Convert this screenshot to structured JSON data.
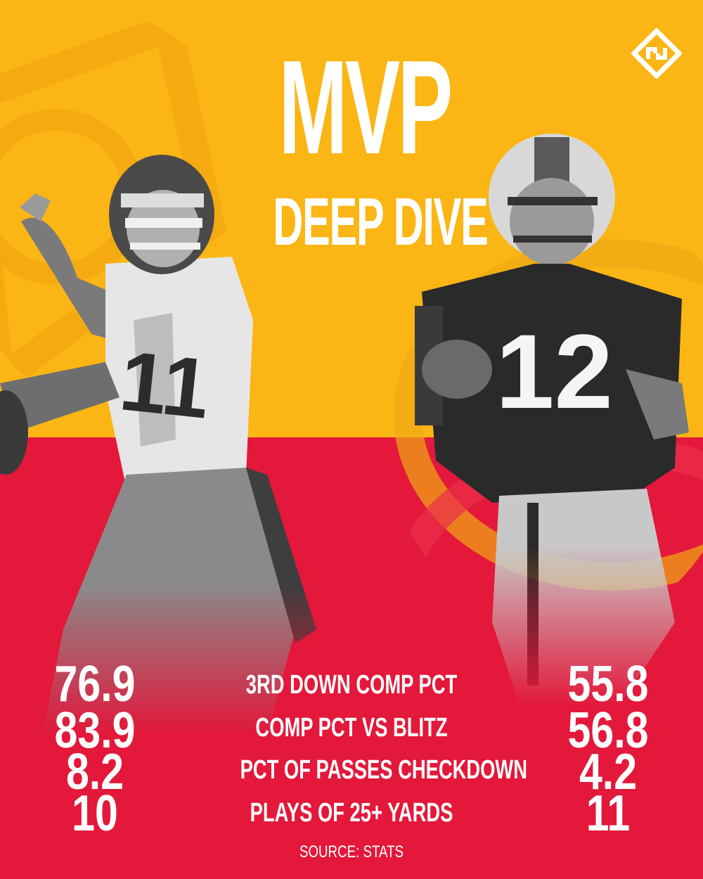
{
  "title": {
    "main": "MVP",
    "sub": "DEEP DIVE"
  },
  "colors": {
    "top_background": "#fbb514",
    "bottom_background": "#e3183a",
    "text": "#ffffff"
  },
  "players": {
    "left": {
      "jersey_number": "11",
      "helmet_icon": "chiefs-helmet"
    },
    "right": {
      "jersey_number": "12",
      "helmet_icon": "packers-helmet"
    }
  },
  "stats": [
    {
      "label": "3RD DOWN COMP PCT",
      "left": "76.9",
      "right": "55.8"
    },
    {
      "label": "COMP PCT VS BLITZ",
      "left": "83.9",
      "right": "56.8"
    },
    {
      "label": "PCT OF PASSES CHECKDOWN",
      "left": "8.2",
      "right": "4.2"
    },
    {
      "label": "PLAYS OF 25+ YARDS",
      "left": "10",
      "right": "11"
    }
  ],
  "source": "SOURCE: STATS",
  "logo": {
    "icon": "sporting-news-logo"
  }
}
